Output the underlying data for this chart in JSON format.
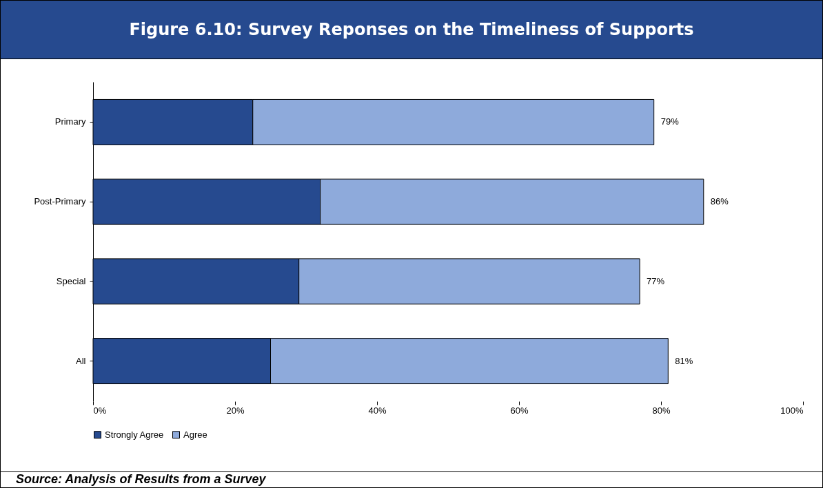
{
  "chart_data": {
    "type": "bar",
    "orientation": "horizontal",
    "stacked": true,
    "title": "Figure 6.10: Survey Reponses on the Timeliness of Supports",
    "categories": [
      "Primary",
      "Post-Primary",
      "Special",
      "All"
    ],
    "series": [
      {
        "name": "Strongly Agree",
        "color": "#264a8f",
        "values": [
          22.5,
          32,
          29,
          25
        ]
      },
      {
        "name": "Agree",
        "color": "#8eaadb",
        "values": [
          56.5,
          54,
          48,
          56
        ]
      }
    ],
    "totals": [
      "79%",
      "86%",
      "77%",
      "81%"
    ],
    "xlim": [
      0,
      100
    ],
    "xticks": [
      {
        "value": 0,
        "label": "0%"
      },
      {
        "value": 20,
        "label": "20%"
      },
      {
        "value": 40,
        "label": "40%"
      },
      {
        "value": 60,
        "label": "60%"
      },
      {
        "value": 80,
        "label": "80%"
      },
      {
        "value": 100,
        "label": "100%"
      }
    ],
    "grid": false,
    "legend": "bottom",
    "annotations": [
      "Source: Analysis of Results from a Survey"
    ]
  }
}
